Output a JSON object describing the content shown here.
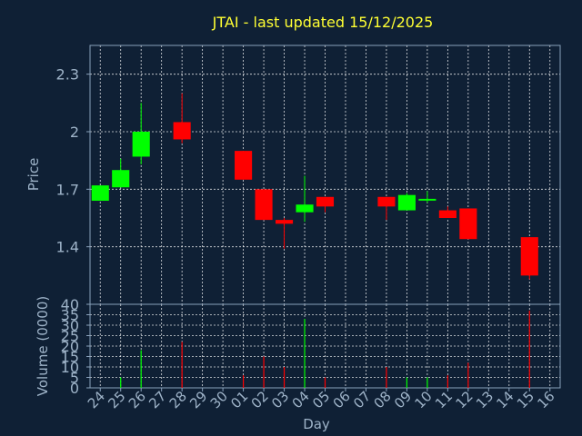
{
  "chart_data": {
    "type": "candlestick",
    "title": "JTAI - last updated 15/12/2025",
    "xlabel": "Day",
    "ylabel": "Price",
    "volume_label": "Volume (0000)",
    "colors": {
      "up": "#00ff00",
      "down": "#ff0000",
      "background": "#0f2035",
      "title": "#ffff33",
      "text": "#9eb3c8"
    },
    "price_ticks": [
      "1.4",
      "1.7",
      "2",
      "2.3"
    ],
    "price_tick_values": [
      1.4,
      1.7,
      2.0,
      2.3
    ],
    "price_ylim": [
      1.1,
      2.45
    ],
    "volume_ticks": [
      "0",
      "5",
      "10",
      "15",
      "20",
      "25",
      "30",
      "35",
      "40"
    ],
    "volume_tick_values": [
      0,
      5,
      10,
      15,
      20,
      25,
      30,
      35,
      40
    ],
    "volume_ylim": [
      0,
      40
    ],
    "day_labels": [
      "24",
      "25",
      "26",
      "27",
      "28",
      "29",
      "30",
      "01",
      "02",
      "03",
      "04",
      "05",
      "06",
      "07",
      "08",
      "09",
      "10",
      "11",
      "12",
      "13",
      "14",
      "15",
      "16"
    ],
    "candles": [
      {
        "day": "24",
        "open": 1.64,
        "close": 1.72,
        "high": 1.72,
        "low": 1.64,
        "volume": 0
      },
      {
        "day": "25",
        "open": 1.71,
        "close": 1.8,
        "high": 1.86,
        "low": 1.71,
        "volume": 5
      },
      {
        "day": "26",
        "open": 1.87,
        "close": 2.0,
        "high": 2.15,
        "low": 1.83,
        "volume": 18
      },
      {
        "day": "28",
        "open": 2.05,
        "close": 1.96,
        "high": 2.2,
        "low": 1.94,
        "volume": 22
      },
      {
        "day": "01",
        "open": 1.9,
        "close": 1.75,
        "high": 1.9,
        "low": 1.75,
        "volume": 6
      },
      {
        "day": "02",
        "open": 1.7,
        "close": 1.54,
        "high": 1.7,
        "low": 1.54,
        "volume": 15
      },
      {
        "day": "03",
        "open": 1.54,
        "close": 1.52,
        "high": 1.55,
        "low": 1.39,
        "volume": 10
      },
      {
        "day": "04",
        "open": 1.58,
        "close": 1.62,
        "high": 1.77,
        "low": 1.53,
        "volume": 33
      },
      {
        "day": "05",
        "open": 1.66,
        "close": 1.61,
        "high": 1.66,
        "low": 1.58,
        "volume": 5
      },
      {
        "day": "08",
        "open": 1.66,
        "close": 1.61,
        "high": 1.66,
        "low": 1.54,
        "volume": 10
      },
      {
        "day": "09",
        "open": 1.59,
        "close": 1.67,
        "high": 1.68,
        "low": 1.59,
        "volume": 5
      },
      {
        "day": "10",
        "open": 1.65,
        "close": 1.65,
        "high": 1.69,
        "low": 1.63,
        "volume": 5
      },
      {
        "day": "11",
        "open": 1.59,
        "close": 1.55,
        "high": 1.61,
        "low": 1.55,
        "volume": 6
      },
      {
        "day": "12",
        "open": 1.6,
        "close": 1.44,
        "high": 1.6,
        "low": 1.44,
        "volume": 12
      },
      {
        "day": "15",
        "open": 1.45,
        "close": 1.25,
        "high": 1.45,
        "low": 1.23,
        "volume": 37
      }
    ]
  }
}
